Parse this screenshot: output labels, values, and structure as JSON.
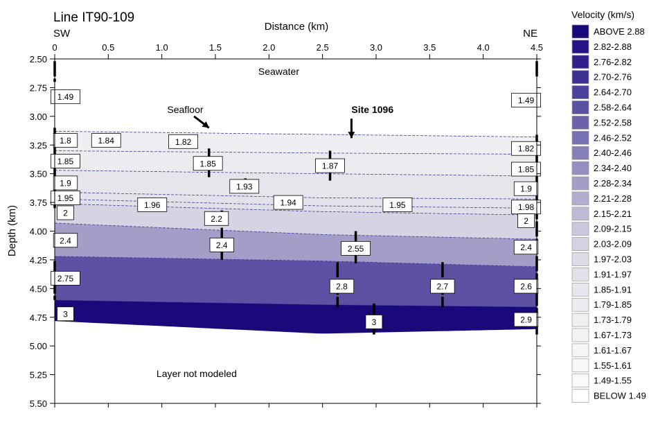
{
  "chart_data": {
    "type": "heatmap",
    "title": "Line IT90-109",
    "xlabel": "Distance (km)",
    "ylabel": "Depth (km)",
    "direction_left": "SW",
    "direction_right": "NE",
    "xlim": [
      0,
      4.5
    ],
    "ylim": [
      2.5,
      5.5
    ],
    "y_inverted": true,
    "x_ticks": [
      "0",
      "0.5",
      "1.0",
      "1.5",
      "2.0",
      "2.5",
      "3.0",
      "3.5",
      "4.0",
      "4.5"
    ],
    "y_ticks": [
      "2.50",
      "2.75",
      "3.00",
      "3.25",
      "3.50",
      "3.75",
      "4.00",
      "4.25",
      "4.50",
      "4.75",
      "5.00",
      "5.25",
      "5.50"
    ],
    "legend": {
      "title": "Velocity (km/s)",
      "entries": [
        {
          "label": "ABOVE 2.88",
          "color": "#17087a"
        },
        {
          "label": "2.82-2.88",
          "color": "#241488"
        },
        {
          "label": "2.76-2.82",
          "color": "#2f208e"
        },
        {
          "label": "2.70-2.76",
          "color": "#3d3294"
        },
        {
          "label": "2.64-2.70",
          "color": "#4b419a"
        },
        {
          "label": "2.58-2.64",
          "color": "#5a51a2"
        },
        {
          "label": "2.52-2.58",
          "color": "#6a63ab"
        },
        {
          "label": "2.46-2.52",
          "color": "#7872b2"
        },
        {
          "label": "2.40-2.46",
          "color": "#8680b9"
        },
        {
          "label": "2.34-2.40",
          "color": "#948fc0"
        },
        {
          "label": "2.28-2.34",
          "color": "#a39ec8"
        },
        {
          "label": "2.21-2.28",
          "color": "#b1adcf"
        },
        {
          "label": "2.15-2.21",
          "color": "#bebbd6"
        },
        {
          "label": "2.09-2.15",
          "color": "#cac8dd"
        },
        {
          "label": "2.03-2.09",
          "color": "#d4d2e2"
        },
        {
          "label": "1.97-2.03",
          "color": "#dcdbe6"
        },
        {
          "label": "1.91-1.97",
          "color": "#e2e1ea"
        },
        {
          "label": "1.85-1.91",
          "color": "#e7e6ee"
        },
        {
          "label": "1.79-1.85",
          "color": "#ebebf1"
        },
        {
          "label": "1.73-1.79",
          "color": "#efeff4"
        },
        {
          "label": "1.67-1.73",
          "color": "#f2f2f6"
        },
        {
          "label": "1.61-1.67",
          "color": "#f5f5f8"
        },
        {
          "label": "1.55-1.61",
          "color": "#f8f8fa"
        },
        {
          "label": "1.49-1.55",
          "color": "#fafafc"
        },
        {
          "label": "BELOW 1.49",
          "color": "#ffffff"
        }
      ]
    },
    "interfaces": [
      {
        "x": [
          0,
          4.5
        ],
        "y": [
          3.13,
          3.18
        ]
      },
      {
        "x": [
          0,
          2.5,
          4.5
        ],
        "y": [
          3.3,
          3.32,
          3.33
        ]
      },
      {
        "x": [
          0,
          2.5,
          4.5
        ],
        "y": [
          3.47,
          3.5,
          3.52
        ]
      },
      {
        "x": [
          0,
          2.5,
          4.5
        ],
        "y": [
          3.66,
          3.71,
          3.72
        ]
      },
      {
        "x": [
          0,
          2.5,
          4.5
        ],
        "y": [
          3.72,
          3.78,
          3.8
        ]
      },
      {
        "x": [
          0,
          2.5,
          4.5
        ],
        "y": [
          3.76,
          3.83,
          3.86
        ]
      },
      {
        "x": [
          0,
          2.5,
          4.5
        ],
        "y": [
          3.93,
          4.03,
          4.07
        ]
      },
      {
        "x": [
          0,
          2.5,
          4.5
        ],
        "y": [
          4.22,
          4.26,
          4.31
        ]
      },
      {
        "x": [
          0,
          2.5,
          4.5
        ],
        "y": [
          4.6,
          4.64,
          4.66
        ]
      },
      {
        "x": [
          0,
          2.5,
          4.5
        ],
        "y": [
          4.78,
          4.89,
          4.85
        ]
      }
    ],
    "layers": [
      {
        "velocity": 1.49,
        "color": "#ffffff"
      },
      {
        "velocity": 1.82,
        "color": "#efeff3"
      },
      {
        "velocity": 1.86,
        "color": "#ececf0"
      },
      {
        "velocity": 1.93,
        "color": "#e6e5ec"
      },
      {
        "velocity": 1.95,
        "color": "#e3e2ea"
      },
      {
        "velocity": 1.96,
        "color": "#e1e0e8"
      },
      {
        "velocity": 2.2,
        "color": "#d6d4e3"
      },
      {
        "velocity": 2.45,
        "color": "#a39dc8"
      },
      {
        "velocity": 2.75,
        "color": "#5e50a2"
      },
      {
        "velocity": 3.0,
        "color": "#19097a"
      }
    ],
    "velocity_labels": [
      {
        "text": "1.49",
        "x": 0.1,
        "y": 2.83
      },
      {
        "text": "1.49",
        "x": 4.4,
        "y": 2.86
      },
      {
        "text": "1.8",
        "x": 0.1,
        "y": 3.21
      },
      {
        "text": "1.84",
        "x": 0.48,
        "y": 3.21
      },
      {
        "text": "1.82",
        "x": 1.2,
        "y": 3.22
      },
      {
        "text": "1.82",
        "x": 4.4,
        "y": 3.28
      },
      {
        "text": "1.85",
        "x": 0.1,
        "y": 3.39
      },
      {
        "text": "1.85",
        "x": 1.43,
        "y": 3.41
      },
      {
        "text": "1.87",
        "x": 2.57,
        "y": 3.43
      },
      {
        "text": "1.85",
        "x": 4.4,
        "y": 3.46
      },
      {
        "text": "1.9",
        "x": 0.1,
        "y": 3.58
      },
      {
        "text": "1.93",
        "x": 1.77,
        "y": 3.61
      },
      {
        "text": "1.9",
        "x": 4.4,
        "y": 3.63
      },
      {
        "text": "1.95",
        "x": 0.1,
        "y": 3.71
      },
      {
        "text": "1.96",
        "x": 0.91,
        "y": 3.77
      },
      {
        "text": "1.94",
        "x": 2.18,
        "y": 3.75
      },
      {
        "text": "1.95",
        "x": 3.2,
        "y": 3.77
      },
      {
        "text": "1.98",
        "x": 4.4,
        "y": 3.79
      },
      {
        "text": "2",
        "x": 0.1,
        "y": 3.84
      },
      {
        "text": "2.2",
        "x": 1.51,
        "y": 3.89
      },
      {
        "text": "2",
        "x": 4.4,
        "y": 3.91
      },
      {
        "text": "2.4",
        "x": 0.1,
        "y": 4.08
      },
      {
        "text": "2.4",
        "x": 1.56,
        "y": 4.12
      },
      {
        "text": "2.55",
        "x": 2.81,
        "y": 4.15
      },
      {
        "text": "2.4",
        "x": 4.4,
        "y": 4.14
      },
      {
        "text": "2.75",
        "x": 0.1,
        "y": 4.41
      },
      {
        "text": "2.8",
        "x": 2.68,
        "y": 4.48
      },
      {
        "text": "2.7",
        "x": 3.62,
        "y": 4.48
      },
      {
        "text": "2.6",
        "x": 4.4,
        "y": 4.48
      },
      {
        "text": "3",
        "x": 0.1,
        "y": 4.72
      },
      {
        "text": "3",
        "x": 2.98,
        "y": 4.79
      },
      {
        "text": "2.9",
        "x": 4.4,
        "y": 4.77
      }
    ],
    "control_ticks": [
      {
        "x": 0.0,
        "y1": 2.52,
        "y2": 2.7
      },
      {
        "x": 0.0,
        "y1": 3.1,
        "y2": 3.8
      },
      {
        "x": 0.0,
        "y1": 4.26,
        "y2": 4.6
      },
      {
        "x": 1.44,
        "y1": 3.28,
        "y2": 3.53
      },
      {
        "x": 1.56,
        "y1": 3.82,
        "y2": 4.25
      },
      {
        "x": 1.78,
        "y1": 3.54,
        "y2": 3.69
      },
      {
        "x": 2.57,
        "y1": 3.3,
        "y2": 3.56
      },
      {
        "x": 2.81,
        "y1": 4.0,
        "y2": 4.28
      },
      {
        "x": 2.64,
        "y1": 4.27,
        "y2": 4.66
      },
      {
        "x": 2.98,
        "y1": 4.63,
        "y2": 4.9
      },
      {
        "x": 3.62,
        "y1": 4.27,
        "y2": 4.66
      },
      {
        "x": 4.5,
        "y1": 2.52,
        "y2": 2.67
      },
      {
        "x": 4.5,
        "y1": 3.16,
        "y2": 4.9
      }
    ],
    "annotations": [
      {
        "text": "Seawater",
        "x": 1.9,
        "y": 2.64,
        "bold": false
      },
      {
        "text": "Seafloor",
        "x": 1.05,
        "y": 2.97,
        "bold": false,
        "arrow_to": [
          1.44,
          3.1
        ],
        "arrow_from": [
          1.3,
          3.0
        ]
      },
      {
        "text": "Site 1096",
        "x": 2.77,
        "y": 2.97,
        "bold": true,
        "arrow_to": [
          2.77,
          3.19
        ],
        "arrow_from": [
          2.77,
          3.02
        ]
      },
      {
        "text": "Layer not modeled",
        "x": 0.95,
        "y": 5.27,
        "bold": false
      }
    ]
  }
}
